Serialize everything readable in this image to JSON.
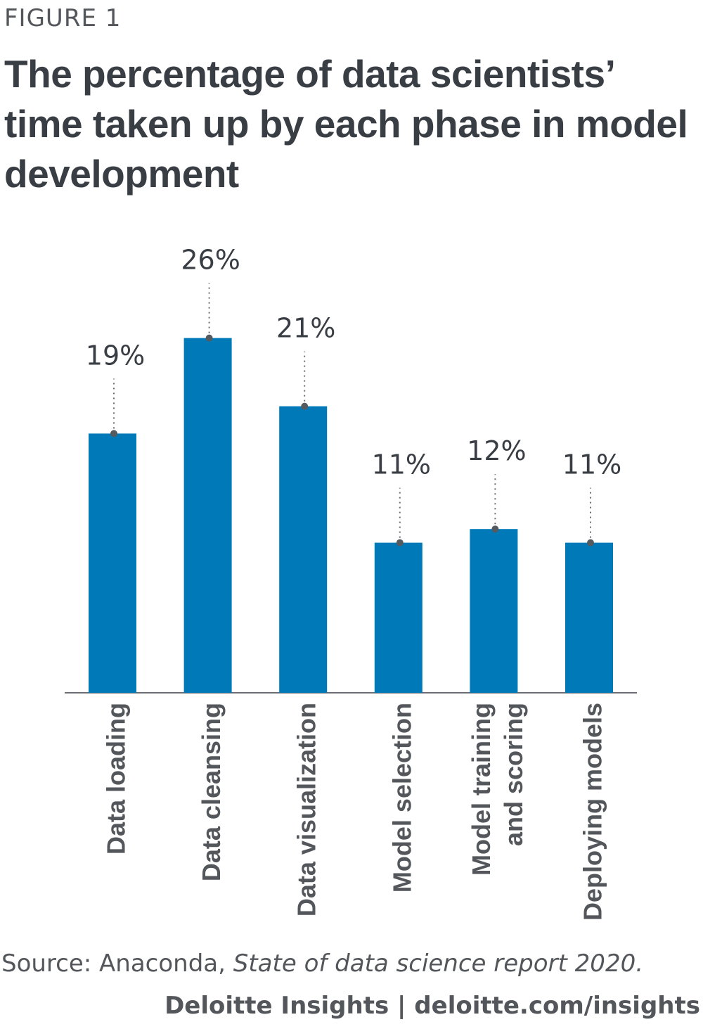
{
  "figure_label": "FIGURE 1",
  "source": {
    "prefix": "Source: Anaconda, ",
    "report": "State of data science report 2020."
  },
  "credit": {
    "brand": "Deloitte Insights",
    "separator": " | ",
    "url": "deloitte.com/insights"
  },
  "colors": {
    "bar": "#0079b8",
    "text": "#393d44",
    "marker": "#555a60"
  },
  "chart_data": {
    "type": "bar",
    "title": "The percentage of data scientists’ time taken up by each phase in model development",
    "categories": [
      [
        "Data loading"
      ],
      [
        "Data cleansing"
      ],
      [
        "Data visualization"
      ],
      [
        "Model selection"
      ],
      [
        "Model training",
        "and scoring"
      ],
      [
        "Deploying models"
      ]
    ],
    "values": [
      19,
      26,
      21,
      11,
      12,
      11
    ],
    "value_labels": [
      "19%",
      "26%",
      "21%",
      "11%",
      "12%",
      "11%"
    ],
    "xlabel": "",
    "ylabel": "",
    "ylim": [
      0,
      26
    ],
    "grid": false
  }
}
